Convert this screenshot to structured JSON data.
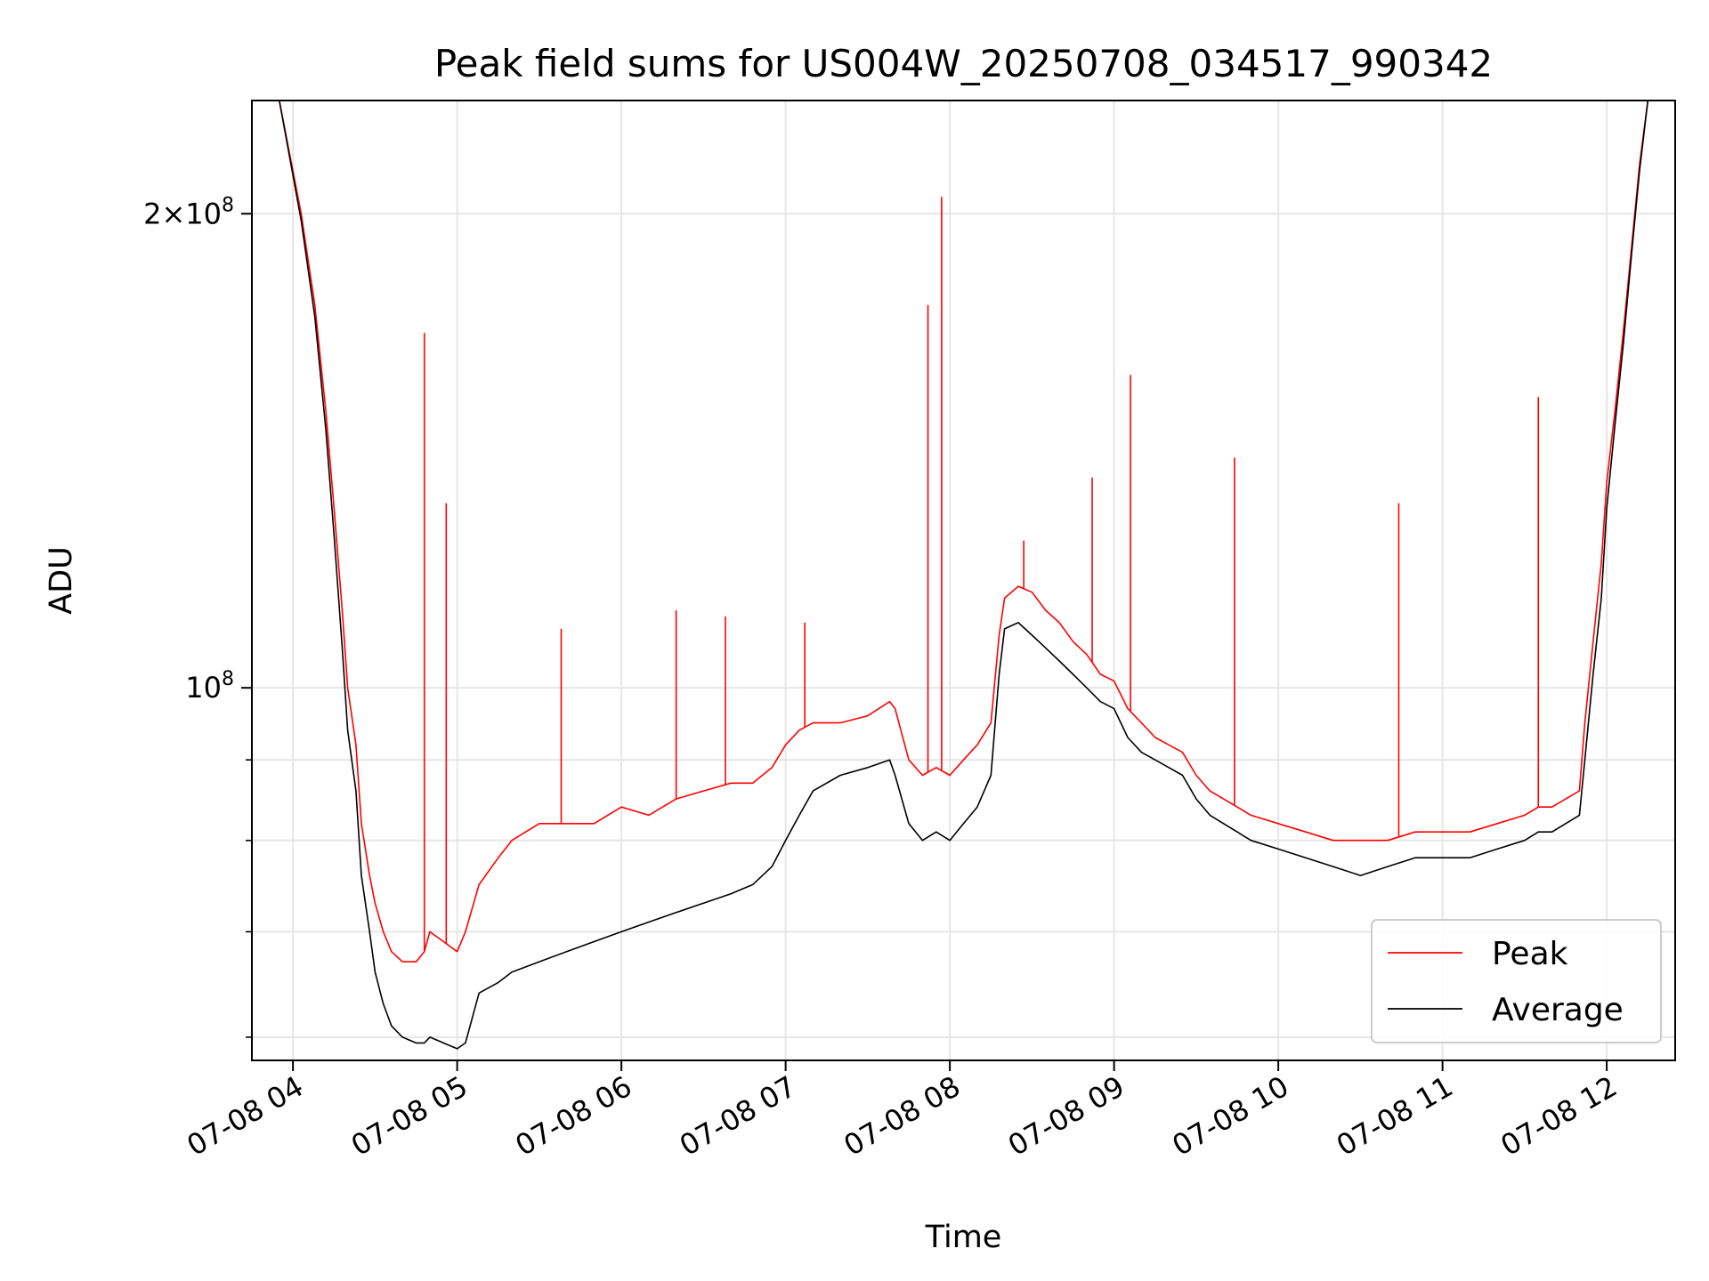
{
  "chart_data": {
    "type": "line",
    "title": "Peak field sums for US004W_20250708_034517_990342",
    "xlabel": "Time",
    "ylabel": "ADU",
    "yscale": "log",
    "grid": true,
    "legend_position": "lower-right",
    "xlim": [
      "2025-07-08 03:45",
      "2025-07-08 12:25"
    ],
    "ylim": [
      58000000,
      236000000
    ],
    "x_ticks": [
      "07-08 04",
      "07-08 05",
      "07-08 06",
      "07-08 07",
      "07-08 08",
      "07-08 09",
      "07-08 10",
      "07-08 11",
      "07-08 12"
    ],
    "y_ticks": [
      {
        "value": 100000000,
        "base": "10",
        "exp": "8",
        "coef": ""
      },
      {
        "value": 200000000,
        "base": "10",
        "exp": "8",
        "coef": "2"
      }
    ],
    "series": [
      {
        "name": "Peak",
        "color": "#ff0000",
        "x": [
          "03:55",
          "04:03",
          "04:08",
          "04:12",
          "04:15",
          "04:18",
          "04:20",
          "04:23",
          "04:25",
          "04:28",
          "04:30",
          "04:33",
          "04:36",
          "04:40",
          "04:45",
          "04:48",
          "04:50",
          "04:55",
          "05:00",
          "05:03",
          "05:08",
          "05:15",
          "05:20",
          "05:30",
          "05:40",
          "05:50",
          "06:00",
          "06:10",
          "06:20",
          "06:30",
          "06:40",
          "06:48",
          "06:55",
          "07:00",
          "07:05",
          "07:10",
          "07:20",
          "07:30",
          "07:38",
          "07:40",
          "07:45",
          "07:50",
          "07:55",
          "08:00",
          "08:05",
          "08:10",
          "08:15",
          "08:18",
          "08:20",
          "08:25",
          "08:30",
          "08:35",
          "08:40",
          "08:45",
          "08:50",
          "08:55",
          "09:00",
          "09:05",
          "09:10",
          "09:15",
          "09:20",
          "09:25",
          "09:30",
          "09:35",
          "09:40",
          "09:45",
          "09:50",
          "10:00",
          "10:10",
          "10:20",
          "10:30",
          "10:40",
          "10:50",
          "11:00",
          "11:10",
          "11:20",
          "11:30",
          "11:35",
          "11:40",
          "11:45",
          "11:50",
          "11:52",
          "11:55",
          "11:58",
          "12:00",
          "12:03",
          "12:06",
          "12:09",
          "12:12",
          "12:15"
        ],
        "y": [
          236000000,
          200000000,
          175000000,
          150000000,
          130000000,
          112000000,
          100000000,
          92000000,
          82000000,
          76000000,
          73000000,
          70000000,
          68000000,
          67000000,
          67000000,
          68000000,
          70000000,
          69000000,
          68000000,
          70000000,
          75000000,
          78000000,
          80000000,
          82000000,
          82000000,
          82000000,
          84000000,
          83000000,
          85000000,
          86000000,
          87000000,
          87000000,
          89000000,
          92000000,
          94000000,
          95000000,
          95000000,
          96000000,
          98000000,
          97000000,
          90000000,
          88000000,
          89000000,
          88000000,
          90000000,
          92000000,
          95000000,
          108000000,
          114000000,
          116000000,
          115000000,
          112000000,
          110000000,
          107000000,
          105000000,
          102000000,
          101000000,
          97000000,
          95000000,
          93000000,
          92000000,
          91000000,
          88000000,
          86000000,
          85000000,
          84000000,
          83000000,
          82000000,
          81000000,
          80000000,
          80000000,
          80000000,
          81000000,
          81000000,
          81000000,
          82000000,
          83000000,
          84000000,
          84000000,
          85000000,
          86000000,
          95000000,
          107000000,
          120000000,
          135000000,
          150000000,
          168000000,
          190000000,
          215000000,
          236000000
        ],
        "spikes": [
          {
            "x": "04:48",
            "y": 168000000
          },
          {
            "x": "04:56",
            "y": 131000000
          },
          {
            "x": "05:38",
            "y": 109000000
          },
          {
            "x": "06:20",
            "y": 112000000
          },
          {
            "x": "06:38",
            "y": 111000000
          },
          {
            "x": "07:07",
            "y": 110000000
          },
          {
            "x": "07:52",
            "y": 175000000
          },
          {
            "x": "07:57",
            "y": 205000000
          },
          {
            "x": "08:27",
            "y": 124000000
          },
          {
            "x": "08:52",
            "y": 136000000
          },
          {
            "x": "09:06",
            "y": 158000000
          },
          {
            "x": "09:44",
            "y": 140000000
          },
          {
            "x": "10:44",
            "y": 131000000
          },
          {
            "x": "11:35",
            "y": 153000000
          }
        ]
      },
      {
        "name": "Average",
        "color": "#000000",
        "x": [
          "03:55",
          "04:03",
          "04:08",
          "04:12",
          "04:15",
          "04:18",
          "04:20",
          "04:23",
          "04:25",
          "04:28",
          "04:30",
          "04:33",
          "04:36",
          "04:40",
          "04:45",
          "04:48",
          "04:50",
          "04:55",
          "05:00",
          "05:03",
          "05:08",
          "05:15",
          "05:20",
          "05:30",
          "05:40",
          "05:50",
          "06:00",
          "06:10",
          "06:20",
          "06:30",
          "06:40",
          "06:48",
          "06:55",
          "07:00",
          "07:05",
          "07:10",
          "07:20",
          "07:30",
          "07:38",
          "07:40",
          "07:45",
          "07:50",
          "07:55",
          "08:00",
          "08:05",
          "08:10",
          "08:15",
          "08:18",
          "08:20",
          "08:25",
          "08:30",
          "08:35",
          "08:40",
          "08:45",
          "08:50",
          "08:55",
          "09:00",
          "09:05",
          "09:10",
          "09:15",
          "09:20",
          "09:25",
          "09:30",
          "09:35",
          "09:40",
          "09:45",
          "09:50",
          "10:00",
          "10:10",
          "10:20",
          "10:30",
          "10:40",
          "10:50",
          "11:00",
          "11:10",
          "11:20",
          "11:30",
          "11:35",
          "11:40",
          "11:45",
          "11:50",
          "11:52",
          "11:55",
          "11:58",
          "12:00",
          "12:03",
          "12:06",
          "12:09",
          "12:12",
          "12:15"
        ],
        "y": [
          236000000,
          198000000,
          172000000,
          146000000,
          125000000,
          106000000,
          94000000,
          86000000,
          76000000,
          70000000,
          66000000,
          63000000,
          61000000,
          60000000,
          59500000,
          59500000,
          60000000,
          59500000,
          59000000,
          59500000,
          64000000,
          65000000,
          66000000,
          67000000,
          68000000,
          69000000,
          70000000,
          71000000,
          72000000,
          73000000,
          74000000,
          75000000,
          77000000,
          80000000,
          83000000,
          86000000,
          88000000,
          89000000,
          90000000,
          88000000,
          82000000,
          80000000,
          81000000,
          80000000,
          82000000,
          84000000,
          88000000,
          102000000,
          109000000,
          110000000,
          108000000,
          106000000,
          104000000,
          102000000,
          100000000,
          98000000,
          97000000,
          93000000,
          91000000,
          90000000,
          89000000,
          88000000,
          85000000,
          83000000,
          82000000,
          81000000,
          80000000,
          79000000,
          78000000,
          77000000,
          76000000,
          77000000,
          78000000,
          78000000,
          78000000,
          79000000,
          80000000,
          81000000,
          81000000,
          82000000,
          83000000,
          90000000,
          102000000,
          114000000,
          130000000,
          147000000,
          165000000,
          188000000,
          213000000,
          236000000
        ]
      }
    ],
    "legend": [
      {
        "label": "Peak",
        "color": "#ff0000"
      },
      {
        "label": "Average",
        "color": "#000000"
      }
    ]
  }
}
